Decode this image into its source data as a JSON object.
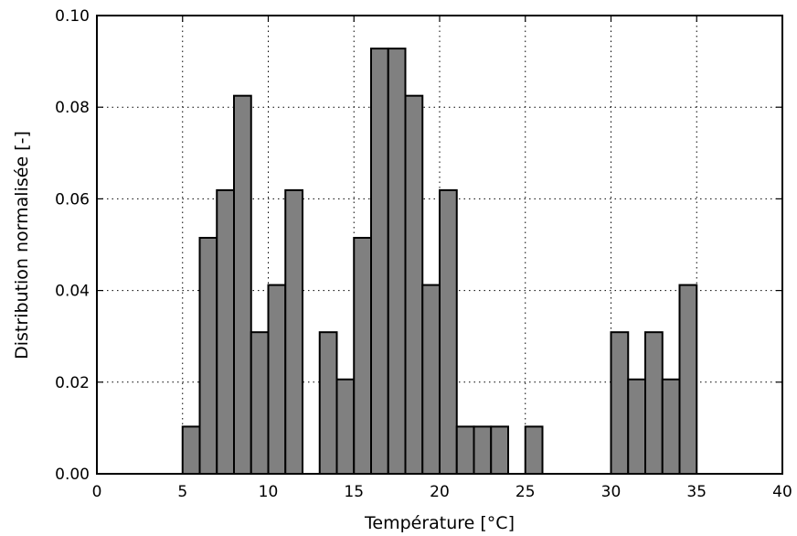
{
  "chart_data": {
    "type": "bar",
    "title": "",
    "xlabel": "Température [°C]",
    "ylabel": "Distribution normalisée [-]",
    "xlim": [
      0,
      40
    ],
    "ylim": [
      0,
      0.1
    ],
    "x_ticks": [
      "0",
      "5",
      "10",
      "15",
      "20",
      "25",
      "30",
      "35",
      "40"
    ],
    "y_ticks": [
      "0.00",
      "0.02",
      "0.04",
      "0.06",
      "0.08",
      "0.10"
    ],
    "grid": true,
    "bar_color": "#808080",
    "bins": [
      {
        "start": 5,
        "end": 6,
        "value": 0.0103
      },
      {
        "start": 6,
        "end": 7,
        "value": 0.0515
      },
      {
        "start": 7,
        "end": 8,
        "value": 0.0619
      },
      {
        "start": 8,
        "end": 9,
        "value": 0.0825
      },
      {
        "start": 9,
        "end": 10,
        "value": 0.0309
      },
      {
        "start": 10,
        "end": 11,
        "value": 0.0412
      },
      {
        "start": 11,
        "end": 12,
        "value": 0.0619
      },
      {
        "start": 13,
        "end": 14,
        "value": 0.0309
      },
      {
        "start": 14,
        "end": 15,
        "value": 0.0206
      },
      {
        "start": 15,
        "end": 16,
        "value": 0.0515
      },
      {
        "start": 16,
        "end": 17,
        "value": 0.0928
      },
      {
        "start": 17,
        "end": 18,
        "value": 0.0928
      },
      {
        "start": 18,
        "end": 19,
        "value": 0.0825
      },
      {
        "start": 19,
        "end": 20,
        "value": 0.0412
      },
      {
        "start": 20,
        "end": 21,
        "value": 0.0619
      },
      {
        "start": 21,
        "end": 22,
        "value": 0.0103
      },
      {
        "start": 22,
        "end": 23,
        "value": 0.0103
      },
      {
        "start": 23,
        "end": 24,
        "value": 0.0103
      },
      {
        "start": 25,
        "end": 26,
        "value": 0.0103
      },
      {
        "start": 30,
        "end": 31,
        "value": 0.0309
      },
      {
        "start": 31,
        "end": 32,
        "value": 0.0206
      },
      {
        "start": 32,
        "end": 33,
        "value": 0.0309
      },
      {
        "start": 33,
        "end": 34,
        "value": 0.0206
      },
      {
        "start": 34,
        "end": 35,
        "value": 0.0412
      }
    ]
  }
}
